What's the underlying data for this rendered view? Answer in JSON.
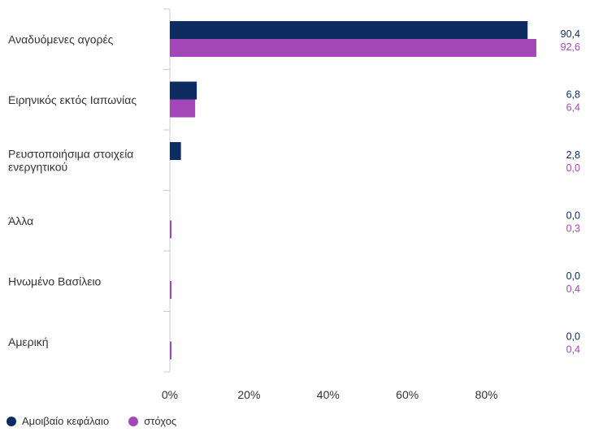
{
  "chart_data": {
    "type": "bar",
    "orientation": "horizontal",
    "categories": [
      "Αναδυόμενες αγορές",
      "Ειρηνικός εκτός Ιαπωνίας",
      "Ρευστοποιήσιμα στοιχεία ενεργητικού",
      "Άλλα",
      "Ηνωμένο Βασίλειο",
      "Αμερική"
    ],
    "series": [
      {
        "name": "Αμοιβαίο κεφάλαιο",
        "color": "#0d2d62",
        "values": [
          90.4,
          6.8,
          2.8,
          0.0,
          0.0,
          0.0
        ],
        "labels": [
          "90,4",
          "6,8",
          "2,8",
          "0,0",
          "0,0",
          "0,0"
        ]
      },
      {
        "name": "στόχος",
        "color": "#a347b8",
        "values": [
          92.6,
          6.4,
          0.0,
          0.3,
          0.4,
          0.4
        ],
        "labels": [
          "92,6",
          "6,4",
          "0,0",
          "0,3",
          "0,4",
          "0,4"
        ]
      }
    ],
    "x_ticks": [
      "0%",
      "20%",
      "40%",
      "60%",
      "80%"
    ],
    "xlim": [
      0,
      100
    ],
    "grid": false,
    "legend_position": "bottom-left"
  }
}
